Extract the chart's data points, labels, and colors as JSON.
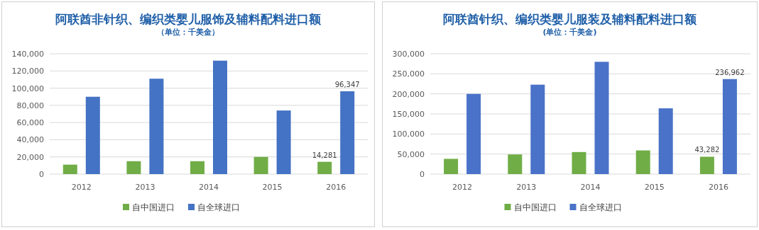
{
  "chart_data": [
    {
      "type": "bar",
      "title": "阿联酋非针织、编织类婴儿服饰及辅料配料进口额",
      "subtitle": "（单位：千美金）",
      "categories": [
        "2012",
        "2013",
        "2014",
        "2015",
        "2016"
      ],
      "series": [
        {
          "name": "自中国进口",
          "color": "#70ad47",
          "values": [
            11000,
            15000,
            15000,
            20000,
            14281
          ],
          "value_labels": [
            null,
            null,
            null,
            null,
            "14,281"
          ]
        },
        {
          "name": "自全球进口",
          "color": "#4472c4",
          "values": [
            90000,
            111000,
            132000,
            74000,
            96347
          ],
          "value_labels": [
            null,
            null,
            null,
            null,
            "96,347"
          ]
        }
      ],
      "ylim": [
        0,
        140000
      ],
      "yticks": [
        {
          "value": 0,
          "label": "0"
        },
        {
          "value": 20000,
          "label": "20,000"
        },
        {
          "value": 40000,
          "label": "40,000"
        },
        {
          "value": 60000,
          "label": "60,000"
        },
        {
          "value": 80000,
          "label": "80,000"
        },
        {
          "value": 100000,
          "label": "100,000"
        },
        {
          "value": 120000,
          "label": "120,000"
        },
        {
          "value": 140000,
          "label": "140,000"
        }
      ],
      "grid": "y",
      "legend": "bottom"
    },
    {
      "type": "bar",
      "title": "阿联酋针织、编织类婴儿服装及辅料配料进口额",
      "subtitle": "(单位：千美金)",
      "categories": [
        "2012",
        "2013",
        "2014",
        "2015",
        "2016"
      ],
      "series": [
        {
          "name": "自中国进口",
          "color": "#70ad47",
          "values": [
            38000,
            49000,
            55000,
            59000,
            43282
          ],
          "value_labels": [
            null,
            null,
            null,
            null,
            "43,282"
          ]
        },
        {
          "name": "自全球进口",
          "color": "#4a72c8",
          "values": [
            200000,
            223000,
            280000,
            164000,
            236962
          ],
          "value_labels": [
            null,
            null,
            null,
            null,
            "236,962"
          ]
        }
      ],
      "ylim": [
        0,
        300000
      ],
      "yticks": [
        {
          "value": 0,
          "label": "0"
        },
        {
          "value": 50000,
          "label": "50,000"
        },
        {
          "value": 100000,
          "label": "100,000"
        },
        {
          "value": 150000,
          "label": "150,000"
        },
        {
          "value": 200000,
          "label": "200,000"
        },
        {
          "value": 250000,
          "label": "250,000"
        },
        {
          "value": 300000,
          "label": "300,000"
        }
      ],
      "grid": "y",
      "legend": "bottom"
    }
  ]
}
